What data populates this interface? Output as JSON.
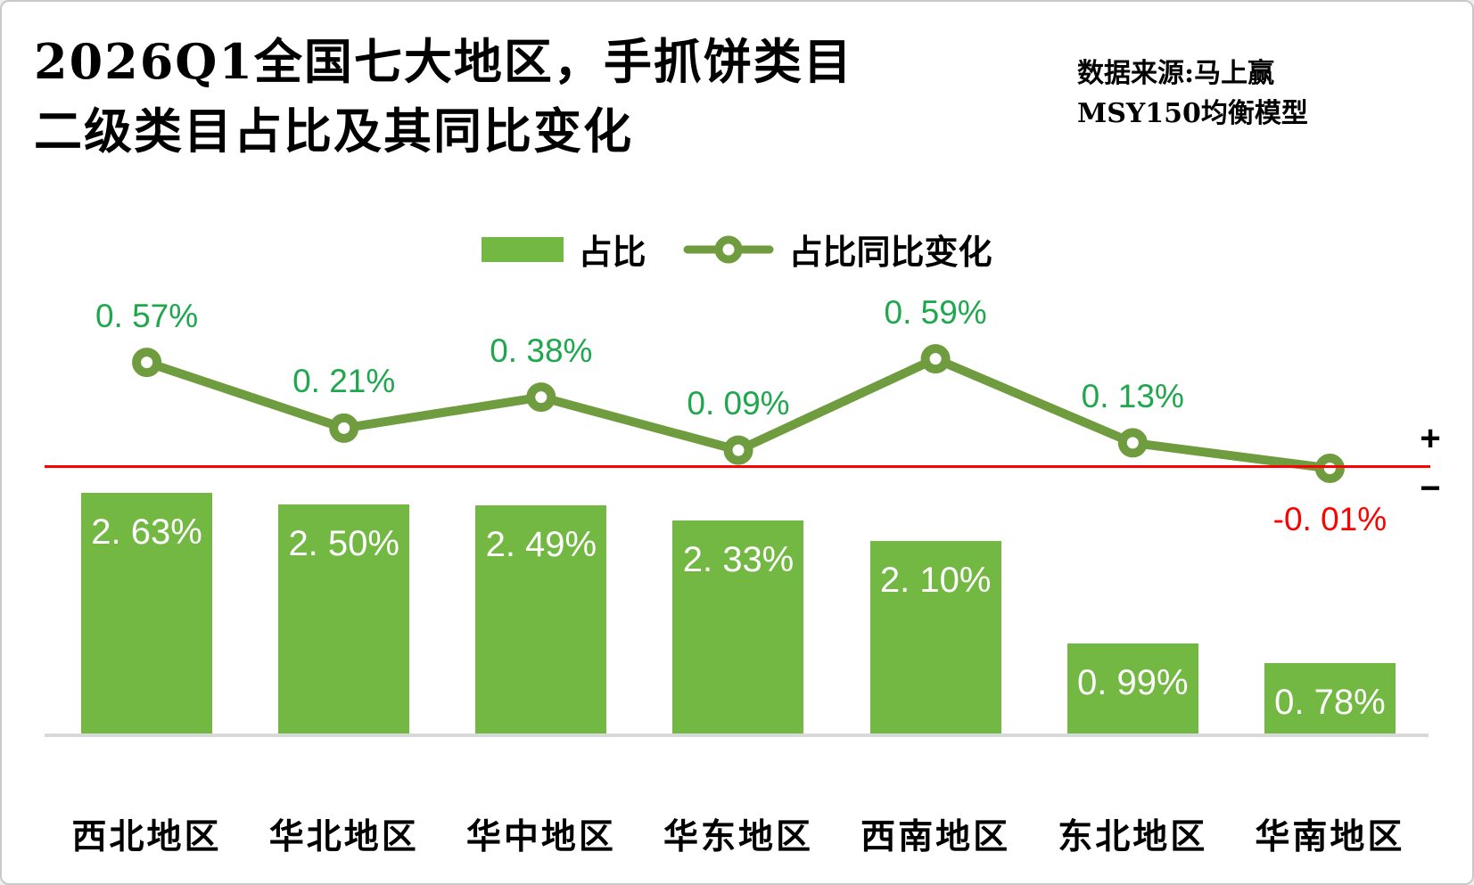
{
  "header": {
    "title_line1": "2026Q1全国七大地区，手抓饼类目",
    "title_line2": "二级类目占比及其同比变化",
    "source_line1": "数据来源:马上赢",
    "source_line2": "MSY150均衡模型"
  },
  "legend": {
    "bar_label": "占比",
    "line_label": "占比同比变化"
  },
  "axis": {
    "plus_sign": "+",
    "minus_sign": "−"
  },
  "colors": {
    "bar_fill": "#72B843",
    "line_stroke": "#6E9C3F",
    "positive_label": "#1EA74D",
    "negative_label": "#FF0000",
    "zero_line": "#FF0000",
    "axis_line": "#D9D9D9",
    "bar_value_text": "#FFFFFF",
    "text": "#000000",
    "border": "#C9C9C9"
  },
  "chart_data": {
    "type": "bar+line combo",
    "title": "2026Q1全国七大地区，手抓饼类目二级类目占比及其同比变化",
    "source": "数据来源:马上赢 MSY150均衡模型",
    "categories": [
      "西北地区",
      "华北地区",
      "华中地区",
      "华东地区",
      "西南地区",
      "东北地区",
      "华南地区"
    ],
    "series": [
      {
        "name": "占比",
        "type": "bar",
        "values": [
          2.63,
          2.5,
          2.49,
          2.33,
          2.1,
          0.99,
          0.78
        ],
        "labels": [
          "2. 63%",
          "2. 50%",
          "2. 49%",
          "2. 33%",
          "2. 10%",
          "0. 99%",
          "0. 78%"
        ]
      },
      {
        "name": "占比同比变化",
        "type": "line",
        "values": [
          0.57,
          0.21,
          0.38,
          0.09,
          0.59,
          0.13,
          -0.01
        ],
        "labels": [
          "0. 57%",
          "0. 21%",
          "0. 38%",
          "0. 09%",
          "0. 59%",
          "0. 13%",
          "-0. 01%"
        ]
      }
    ],
    "legend_position": "top-center",
    "grid": false,
    "y_axis_visible": false,
    "zero_reference_line": true
  }
}
